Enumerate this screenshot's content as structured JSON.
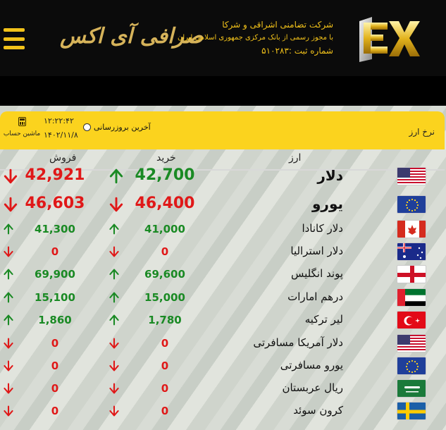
{
  "header": {
    "menu_icon": "hamburger-icon",
    "brand_script": "صرافی آی اکس",
    "company_line1": "شرکت تضامنی اشراقی و شرکا",
    "company_line2": "با مجوز رسمی از بانک مرکزی جمهوری اسلامی ایران",
    "company_line3": "شماره ثبت :۵۱۰۲۸۳",
    "logo_text": "EX"
  },
  "ratebar": {
    "title": "نرخ ارز",
    "last_update": "آخرین بروزرسانی",
    "time": "۱۲:۲۲:۴۲",
    "date": "۱۴۰۲/۱۱/۸",
    "calculator_label": "ماشین حساب",
    "calculator_icon": "calculator-icon"
  },
  "table": {
    "columns": {
      "currency": "ارز",
      "buy": "خرید",
      "sell": "فروش"
    },
    "rows": [
      {
        "name": "دلار",
        "buy": "42,700",
        "sell": "42,921",
        "buy_dir": "up",
        "sell_dir": "down",
        "flag": "usa"
      },
      {
        "name": "یورو",
        "buy": "46,400",
        "sell": "46,603",
        "buy_dir": "down",
        "sell_dir": "down",
        "flag": "eu"
      },
      {
        "name": "دلار کانادا",
        "buy": "41,000",
        "sell": "41,300",
        "buy_dir": "up",
        "sell_dir": "up",
        "flag": "canada"
      },
      {
        "name": "دلار استرالیا",
        "buy": "0",
        "sell": "0",
        "buy_dir": "down",
        "sell_dir": "down",
        "flag": "australia"
      },
      {
        "name": "پوند انگلیس",
        "buy": "69,600",
        "sell": "69,900",
        "buy_dir": "up",
        "sell_dir": "up",
        "flag": "england"
      },
      {
        "name": "درهم امارات",
        "buy": "15,000",
        "sell": "15,100",
        "buy_dir": "up",
        "sell_dir": "up",
        "flag": "uae"
      },
      {
        "name": "لیر ترکیه",
        "buy": "1,780",
        "sell": "1,860",
        "buy_dir": "up",
        "sell_dir": "up",
        "flag": "turkey"
      },
      {
        "name": "دلار آمریکا مسافرتی",
        "buy": "0",
        "sell": "0",
        "buy_dir": "down",
        "sell_dir": "down",
        "flag": "usa"
      },
      {
        "name": "یورو مسافرتی",
        "buy": "0",
        "sell": "0",
        "buy_dir": "down",
        "sell_dir": "down",
        "flag": "eu"
      },
      {
        "name": "ریال عربستان",
        "buy": "0",
        "sell": "0",
        "buy_dir": "down",
        "sell_dir": "down",
        "flag": "saudi"
      },
      {
        "name": "کرون سوئد",
        "buy": "0",
        "sell": "0",
        "buy_dir": "down",
        "sell_dir": "down",
        "flag": "sweden"
      }
    ]
  },
  "colors": {
    "accent": "#fbd31e",
    "up": "#1a8a24",
    "down": "#e01818",
    "header_bg": "#0b0b0b"
  }
}
